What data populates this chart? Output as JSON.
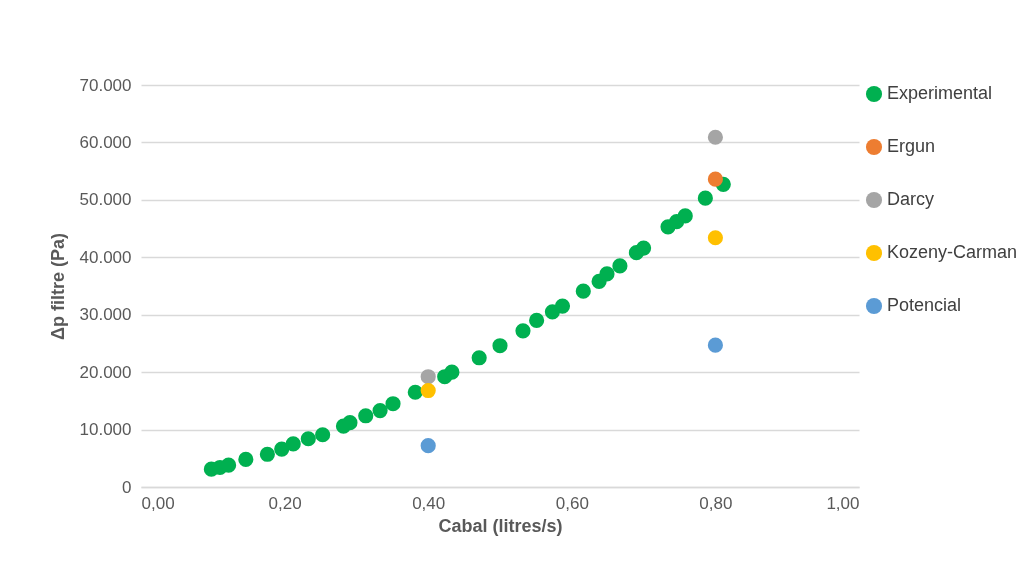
{
  "chart_data": {
    "type": "scatter",
    "xlabel": "Cabal (litres/s)",
    "ylabel": "Δp filtre (Pa)",
    "marker": "circle",
    "grid": "y",
    "legend": "right",
    "xlim": [
      0,
      1
    ],
    "xticks": [
      {
        "value": 0,
        "label": "0,00"
      },
      {
        "value": 0.2,
        "label": "0,20"
      },
      {
        "value": 0.4,
        "label": "0,40"
      },
      {
        "value": 0.6,
        "label": "0,60"
      },
      {
        "value": 0.8,
        "label": "0,80"
      },
      {
        "value": 1,
        "label": "1,00"
      }
    ],
    "ylim": [
      0,
      70000
    ],
    "yticks": [
      0,
      {
        "value": 10000,
        "label": "10.000"
      },
      {
        "value": 20000,
        "label": "20.000"
      },
      {
        "value": 30000,
        "label": "30.000"
      },
      {
        "value": 40000,
        "label": "40.000"
      },
      {
        "value": 50000,
        "label": "50.000"
      },
      {
        "value": 60000,
        "label": "60.000"
      },
      {
        "value": 70000,
        "label": "70.000"
      }
    ],
    "series": [
      {
        "name": "Experimental",
        "color": "#00b050",
        "x": [
          0.098,
          0.11,
          0.122,
          0.146,
          0.176,
          0.196,
          0.212,
          0.233,
          0.253,
          0.282,
          0.291,
          0.313,
          0.333,
          0.351,
          0.382,
          0.423,
          0.433,
          0.471,
          0.5,
          0.532,
          0.551,
          0.573,
          0.587,
          0.616,
          0.638,
          0.649,
          0.667,
          0.69,
          0.7,
          0.734,
          0.746,
          0.758,
          0.786,
          0.811
        ],
        "values": [
          3100,
          3400,
          3800,
          4800,
          5700,
          6600,
          7500,
          8400,
          9100,
          10600,
          11200,
          12400,
          13300,
          14500,
          16500,
          19200,
          20000,
          22500,
          24600,
          27200,
          29000,
          30500,
          31500,
          34100,
          35800,
          37100,
          38500,
          40800,
          41600,
          45300,
          46200,
          47200,
          50300,
          52700
        ]
      },
      {
        "name": "Ergun",
        "color": "#ed7d31",
        "x": [
          0.8
        ],
        "values": [
          53600
        ]
      },
      {
        "name": "Darcy",
        "color": "#a5a5a5",
        "x": [
          0.4,
          0.8
        ],
        "values": [
          19200,
          60900
        ]
      },
      {
        "name": "Kozeny-Carman",
        "color": "#ffc000",
        "x": [
          0.4,
          0.8
        ],
        "values": [
          16800,
          43400
        ]
      },
      {
        "name": "Potencial",
        "color": "#5b9bd5",
        "x": [
          0.4,
          0.8
        ],
        "values": [
          7200,
          24700
        ]
      }
    ]
  }
}
